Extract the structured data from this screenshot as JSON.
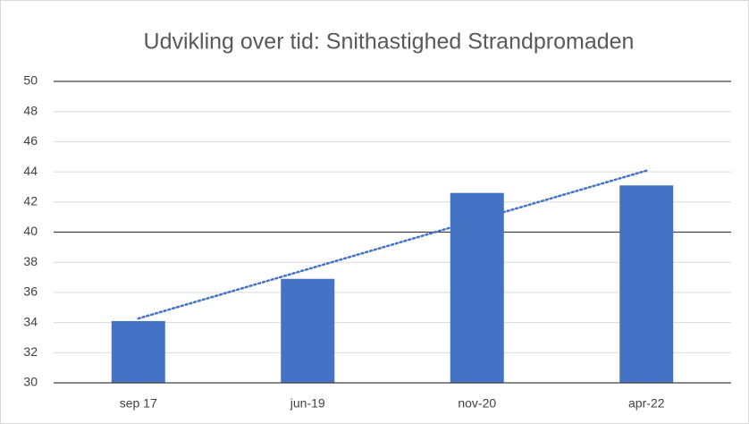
{
  "chart_data": {
    "type": "bar",
    "title": "Udvikling over tid: Snithastighed Strandpromaden",
    "categories": [
      "sep 17",
      "jun-19",
      "nov-20",
      "apr-22"
    ],
    "values": [
      34.1,
      36.9,
      42.6,
      43.1
    ],
    "color": "#4472c4",
    "ylim": [
      30,
      50
    ],
    "yticks": [
      30,
      32,
      34,
      36,
      38,
      40,
      42,
      44,
      46,
      48,
      50
    ],
    "grid": true,
    "reference_lines": [
      40,
      50
    ],
    "trendline": "linear"
  }
}
